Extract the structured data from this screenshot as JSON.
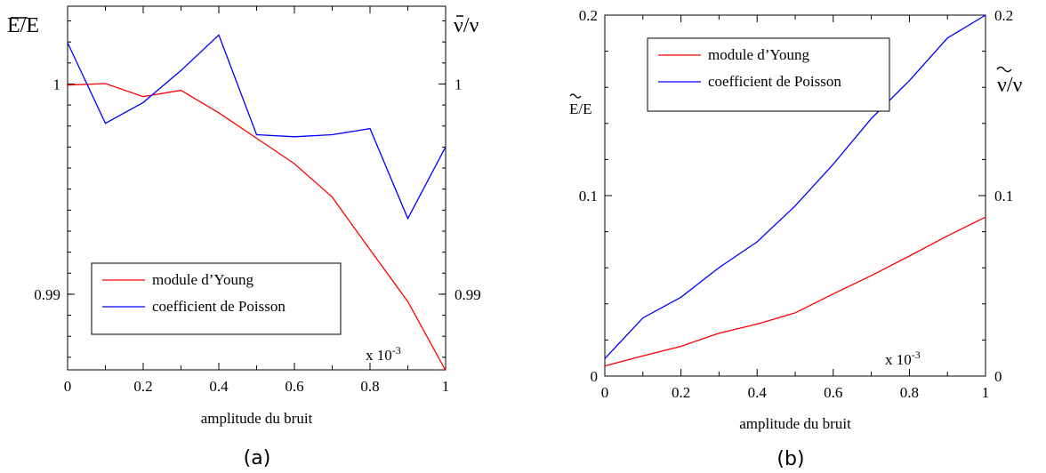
{
  "chart_data": [
    {
      "type": "line",
      "panel_label": "(a)",
      "xlabel": "amplitude du bruit",
      "multiplier": "x 10",
      "multiplier_exp": "-3",
      "ylabel_left": "E/E",
      "ylabel_right": "ν/ν",
      "x": [
        0,
        0.1,
        0.2,
        0.3,
        0.4,
        0.5,
        0.6,
        0.7,
        0.8,
        0.9,
        1.0
      ],
      "xlim": [
        0,
        1
      ],
      "xticks": [
        "0",
        "0.2",
        "0.4",
        "0.6",
        "0.8",
        "1"
      ],
      "ylim_left": [
        0.9864,
        1.0037
      ],
      "yticks_left": [
        "0.99",
        "1"
      ],
      "ylim_right": [
        0.9864,
        1.0037
      ],
      "yticks_right": [
        "0.99",
        "1"
      ],
      "legend_position": "bottom-left",
      "series": [
        {
          "name": "module d’Young",
          "color": "#ff0000",
          "axis": "left",
          "values": [
            0.99995,
            1.00002,
            0.9994,
            0.9997,
            0.99863,
            0.99742,
            0.99621,
            0.99462,
            0.99212,
            0.98965,
            0.98637
          ]
        },
        {
          "name": "coefficient de Poisson",
          "color": "#0000ff",
          "axis": "right",
          "values": [
            1.00196,
            0.99813,
            0.99912,
            1.00064,
            1.00233,
            0.99759,
            0.99749,
            0.99759,
            0.99788,
            0.9936,
            0.99701
          ]
        }
      ]
    },
    {
      "type": "line",
      "panel_label": "(b)",
      "xlabel": "amplitude du bruit",
      "multiplier": "x 10",
      "multiplier_exp": "-3",
      "ylabel_left": "E/E",
      "ylabel_right": "ν/ν",
      "x": [
        0,
        0.1,
        0.2,
        0.3,
        0.4,
        0.5,
        0.6,
        0.7,
        0.8,
        0.9,
        1.0
      ],
      "xlim": [
        0,
        1
      ],
      "xticks": [
        "0",
        "0.2",
        "0.4",
        "0.6",
        "0.8",
        "1"
      ],
      "ylim_left": [
        0,
        0.2
      ],
      "yticks_left": [
        "0",
        "0.1",
        "0.2"
      ],
      "ylim_right": [
        0,
        0.2
      ],
      "yticks_right": [
        "0",
        "0.1",
        "0.2"
      ],
      "legend_position": "top-left",
      "series": [
        {
          "name": "module d’Young",
          "color": "#ff0000",
          "axis": "left",
          "values": [
            0.0056,
            0.0112,
            0.0165,
            0.0238,
            0.0288,
            0.035,
            0.0455,
            0.0557,
            0.0665,
            0.0777,
            0.0881
          ]
        },
        {
          "name": "coefficient de Poisson",
          "color": "#0000ff",
          "axis": "right",
          "values": [
            0.0097,
            0.0322,
            0.0437,
            0.0601,
            0.0744,
            0.0943,
            0.1174,
            0.1427,
            0.1637,
            0.1873,
            0.2
          ]
        }
      ]
    }
  ]
}
